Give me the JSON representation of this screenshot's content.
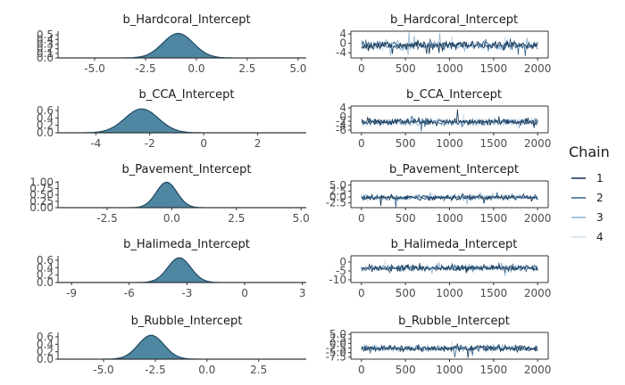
{
  "chart_data": {
    "type": "multi-panel",
    "description_free": true,
    "density_fill": "#4f86a1",
    "density_line": "#1f4a63",
    "legend": {
      "title": "Chain",
      "position": "right",
      "entries": [
        {
          "label": "1",
          "color": "#0d2f4d"
        },
        {
          "label": "2",
          "color": "#35618a"
        },
        {
          "label": "3",
          "color": "#8fb2cf"
        },
        {
          "label": "4",
          "color": "#cfe0ee"
        }
      ]
    },
    "rows": [
      {
        "title": "b_Hardcoral_Intercept",
        "density": {
          "type": "area",
          "mean": -0.9,
          "sd": 0.75,
          "xlim": [
            -6.8,
            5.4
          ],
          "xticks": [
            {
              "v": -5,
              "l": "-5.0"
            },
            {
              "v": -2.5,
              "l": "-2.5"
            },
            {
              "v": 0,
              "l": "0.0"
            },
            {
              "v": 2.5,
              "l": "2.5"
            },
            {
              "v": 5,
              "l": "5.0"
            }
          ],
          "ylim": [
            0,
            0.58
          ],
          "yticks": [
            {
              "v": 0,
              "l": "0.0"
            },
            {
              "v": 0.1,
              "l": "0.1"
            },
            {
              "v": 0.2,
              "l": "0.2"
            },
            {
              "v": 0.3,
              "l": "0.3"
            },
            {
              "v": 0.4,
              "l": "0.4"
            },
            {
              "v": 0.5,
              "l": "0.5"
            }
          ]
        },
        "trace": {
          "type": "line",
          "mean": -0.9,
          "sd": 0.9,
          "xlim": [
            -120,
            2120
          ],
          "xticks": [
            {
              "v": 0,
              "l": "0"
            },
            {
              "v": 500,
              "l": "500"
            },
            {
              "v": 1000,
              "l": "1000"
            },
            {
              "v": 1500,
              "l": "1500"
            },
            {
              "v": 2000,
              "l": "2000"
            }
          ],
          "ylim": [
            -6.2,
            5.2
          ],
          "yticks": [
            {
              "v": 4,
              "l": "4"
            },
            {
              "v": 0,
              "l": "0"
            },
            {
              "v": -4,
              "l": "-4"
            }
          ]
        }
      },
      {
        "title": "b_CCA_Intercept",
        "density": {
          "type": "area",
          "mean": -2.3,
          "sd": 0.62,
          "xlim": [
            -5.4,
            3.8
          ],
          "xticks": [
            {
              "v": -4,
              "l": "-4"
            },
            {
              "v": -2,
              "l": "-2"
            },
            {
              "v": 0,
              "l": "0"
            },
            {
              "v": 2,
              "l": "2"
            }
          ],
          "ylim": [
            0,
            0.72
          ],
          "yticks": [
            {
              "v": 0,
              "l": "0.0"
            },
            {
              "v": 0.2,
              "l": "0.2"
            },
            {
              "v": 0.4,
              "l": "0.4"
            },
            {
              "v": 0.6,
              "l": "0.6"
            }
          ]
        },
        "trace": {
          "type": "line",
          "mean": -2.3,
          "sd": 0.75,
          "xlim": [
            -120,
            2120
          ],
          "xticks": [
            {
              "v": 0,
              "l": "0"
            },
            {
              "v": 500,
              "l": "500"
            },
            {
              "v": 1000,
              "l": "1000"
            },
            {
              "v": 1500,
              "l": "1500"
            },
            {
              "v": 2000,
              "l": "2000"
            }
          ],
          "ylim": [
            -7.2,
            4.8
          ],
          "yticks": [
            {
              "v": 4,
              "l": "4"
            },
            {
              "v": 0,
              "l": "0"
            },
            {
              "v": -2,
              "l": "-2"
            },
            {
              "v": -4,
              "l": "-4"
            },
            {
              "v": -6,
              "l": "-6"
            }
          ]
        }
      },
      {
        "title": "b_Pavement_Intercept",
        "density": {
          "type": "area",
          "mean": -0.2,
          "sd": 0.4,
          "xlim": [
            -4.4,
            5.2
          ],
          "xticks": [
            {
              "v": -2.5,
              "l": "-2.5"
            },
            {
              "v": 0,
              "l": "0.0"
            },
            {
              "v": 2.5,
              "l": "2.5"
            },
            {
              "v": 5,
              "l": "5.0"
            }
          ],
          "ylim": [
            0,
            1.05
          ],
          "yticks": [
            {
              "v": 0,
              "l": "0.00"
            },
            {
              "v": 0.25,
              "l": "0.25"
            },
            {
              "v": 0.5,
              "l": "0.50"
            },
            {
              "v": 0.75,
              "l": "0.75"
            },
            {
              "v": 1,
              "l": "1.00"
            }
          ]
        },
        "trace": {
          "type": "line",
          "mean": -0.2,
          "sd": 0.55,
          "xlim": [
            -120,
            2120
          ],
          "xticks": [
            {
              "v": 0,
              "l": "0"
            },
            {
              "v": 500,
              "l": "500"
            },
            {
              "v": 1000,
              "l": "1000"
            },
            {
              "v": 1500,
              "l": "1500"
            },
            {
              "v": 2000,
              "l": "2000"
            }
          ],
          "ylim": [
            -4.5,
            6.8
          ],
          "yticks": [
            {
              "v": 5,
              "l": "5.0"
            },
            {
              "v": 2.5,
              "l": "2.5"
            },
            {
              "v": 0,
              "l": "0.0"
            },
            {
              "v": -2.5,
              "l": "-2.5"
            }
          ]
        }
      },
      {
        "title": "b_Halimeda_Intercept",
        "density": {
          "type": "area",
          "mean": -3.4,
          "sd": 0.6,
          "xlim": [
            -9.7,
            3.2
          ],
          "xticks": [
            {
              "v": -9,
              "l": "-9"
            },
            {
              "v": -6,
              "l": "-6"
            },
            {
              "v": -3,
              "l": "-3"
            },
            {
              "v": 0,
              "l": "0"
            },
            {
              "v": 3,
              "l": "3"
            }
          ],
          "ylim": [
            0,
            0.72
          ],
          "yticks": [
            {
              "v": 0,
              "l": "0.0"
            },
            {
              "v": 0.2,
              "l": "0.2"
            },
            {
              "v": 0.4,
              "l": "0.4"
            },
            {
              "v": 0.6,
              "l": "0.6"
            }
          ]
        },
        "trace": {
          "type": "line",
          "mean": -3.4,
          "sd": 0.85,
          "xlim": [
            -120,
            2120
          ],
          "xticks": [
            {
              "v": 0,
              "l": "0"
            },
            {
              "v": 500,
              "l": "500"
            },
            {
              "v": 1000,
              "l": "1000"
            },
            {
              "v": 1500,
              "l": "1500"
            },
            {
              "v": 2000,
              "l": "2000"
            }
          ],
          "ylim": [
            -11.5,
            3.5
          ],
          "yticks": [
            {
              "v": 0,
              "l": "0"
            },
            {
              "v": -5,
              "l": "-5"
            },
            {
              "v": -10,
              "l": "-10"
            }
          ]
        }
      },
      {
        "title": "b_Rubble_Intercept",
        "density": {
          "type": "area",
          "mean": -2.7,
          "sd": 0.62,
          "xlim": [
            -7.2,
            4.8
          ],
          "xticks": [
            {
              "v": -5,
              "l": "-5.0"
            },
            {
              "v": -2.5,
              "l": "-2.5"
            },
            {
              "v": 0,
              "l": "0.0"
            },
            {
              "v": 2.5,
              "l": "2.5"
            }
          ],
          "ylim": [
            0,
            0.72
          ],
          "yticks": [
            {
              "v": 0,
              "l": "0.0"
            },
            {
              "v": 0.2,
              "l": "0.2"
            },
            {
              "v": 0.4,
              "l": "0.4"
            },
            {
              "v": 0.6,
              "l": "0.6"
            }
          ]
        },
        "trace": {
          "type": "line",
          "mean": -2.7,
          "sd": 0.8,
          "xlim": [
            -120,
            2120
          ],
          "xticks": [
            {
              "v": 0,
              "l": "0"
            },
            {
              "v": 500,
              "l": "500"
            },
            {
              "v": 1000,
              "l": "1000"
            },
            {
              "v": 1500,
              "l": "1500"
            },
            {
              "v": 2000,
              "l": "2000"
            }
          ],
          "ylim": [
            -8.6,
            6.0
          ],
          "yticks": [
            {
              "v": 5,
              "l": "5.0"
            },
            {
              "v": 2.5,
              "l": "2.5"
            },
            {
              "v": 0,
              "l": "0.0"
            },
            {
              "v": -2.5,
              "l": "-2.5"
            },
            {
              "v": -5,
              "l": "-5.0"
            },
            {
              "v": -7.5,
              "l": "-7.5"
            }
          ]
        }
      }
    ]
  }
}
